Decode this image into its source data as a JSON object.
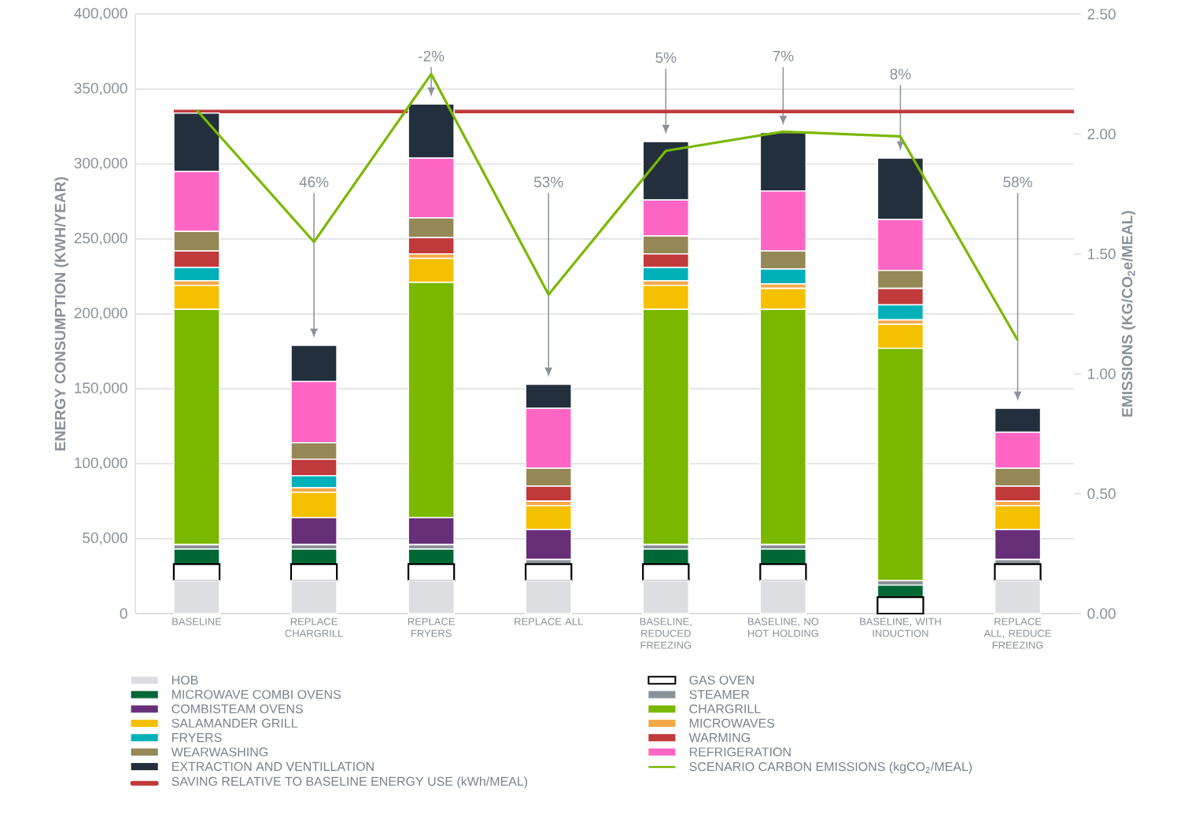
{
  "chart_data": {
    "type": "bar",
    "stacked": true,
    "categories": [
      "BASELINE",
      "REPLACE CHARGRILL",
      "REPLACE FRYERS",
      "REPLACE ALL",
      "BASELINE, REDUCED FREEZING",
      "BASELINE, NO HOT HOLDING",
      "BASELINE, WITH INDUCTION",
      "REPLACE ALL, REDUCE FREEZING"
    ],
    "series": [
      {
        "name": "HOB",
        "color": "#dddee2",
        "values": [
          22000,
          22000,
          22000,
          22000,
          22000,
          22000,
          0,
          22000
        ]
      },
      {
        "name": "GAS OVEN",
        "color": "#ffffff",
        "values": [
          11000,
          11000,
          11000,
          11000,
          11000,
          11000,
          11000,
          11000
        ]
      },
      {
        "name": "MICROWAVE COMBI OVENS",
        "color": "#006837",
        "values": [
          10000,
          10000,
          10000,
          0,
          10000,
          10000,
          8000,
          0
        ]
      },
      {
        "name": "STEAMER",
        "color": "#8a9199",
        "values": [
          3000,
          3000,
          3000,
          3000,
          3000,
          3000,
          3000,
          3000
        ]
      },
      {
        "name": "COMBISTEAM OVENS",
        "color": "#662f78",
        "values": [
          0,
          18000,
          18000,
          20000,
          0,
          0,
          0,
          20000
        ]
      },
      {
        "name": "CHARGRILL",
        "color": "#7ab800",
        "values": [
          157000,
          0,
          157000,
          0,
          157000,
          157000,
          155000,
          0
        ]
      },
      {
        "name": "SALAMANDER GRILL",
        "color": "#f5c000",
        "values": [
          16000,
          17000,
          16000,
          16000,
          16000,
          14000,
          16000,
          16000
        ]
      },
      {
        "name": "MICROWAVES",
        "color": "#f5a84a",
        "values": [
          3000,
          3000,
          3000,
          3000,
          3000,
          3000,
          3000,
          3000
        ]
      },
      {
        "name": "FRYERS",
        "color": "#00b0b9",
        "values": [
          9000,
          8000,
          0,
          0,
          9000,
          10000,
          10000,
          0
        ]
      },
      {
        "name": "WARMING",
        "color": "#c0393b",
        "values": [
          11000,
          11000,
          11000,
          10000,
          9000,
          0,
          11000,
          10000
        ]
      },
      {
        "name": "WEARWASHING",
        "color": "#948856",
        "values": [
          13000,
          11000,
          13000,
          12000,
          12000,
          12000,
          12000,
          12000
        ]
      },
      {
        "name": "REFRIGERATION",
        "color": "#ff66c4",
        "values": [
          40000,
          41000,
          40000,
          40000,
          24000,
          40000,
          34000,
          24000
        ]
      },
      {
        "name": "EXTRACTION AND VENTILLATION",
        "color": "#232f3c",
        "values": [
          39000,
          24000,
          36000,
          16000,
          39000,
          39000,
          41000,
          16000
        ]
      },
      {
        "name": "SCENARIO CARBON EMISSIONS (kgCO$_{2}$/MEAL)",
        "type": "line",
        "axis": "y2",
        "color": "#7ab800",
        "values": [
          2.1,
          1.55,
          2.25,
          1.33,
          1.93,
          2.01,
          1.99,
          1.14
        ]
      }
    ],
    "ylabel": "ENERGY CONSUMPTION (KWH/YEAR)",
    "y2label": "EMISSIONS (KG/CO$_{2}$e/MEAL)",
    "ylim": [
      0,
      400000
    ],
    "yticks": [
      0,
      {
        "value": 50000,
        "label": "50,000"
      },
      {
        "value": 100000,
        "label": "100,000"
      },
      {
        "value": 150000,
        "label": "150,000"
      },
      {
        "value": 200000,
        "label": "200,000"
      },
      {
        "value": 250000,
        "label": "250,000"
      },
      {
        "value": 300000,
        "label": "300,000"
      },
      {
        "value": 350000,
        "label": "350,000"
      },
      {
        "value": 400000,
        "label": "400,000"
      }
    ],
    "y2lim": [
      0,
      2.5
    ],
    "y2ticks": [
      {
        "value": 0,
        "label": "0.00"
      },
      {
        "value": 0.5,
        "label": "0.50"
      },
      {
        "value": 1,
        "label": "1.00"
      },
      {
        "value": 1.5,
        "label": "1.50"
      },
      {
        "value": 2,
        "label": "2.00"
      },
      {
        "value": 2.5,
        "label": "2.50"
      }
    ],
    "ref_lines": [
      {
        "axis": "y",
        "value": 335000,
        "label": "SAVING RELATIVE TO BASELINE ENERGY USE (kWh/MEAL)",
        "color": "#c0393b"
      }
    ],
    "annotations": [
      "46%",
      "-2%",
      "53%",
      "5%",
      "7%",
      "8%",
      "58%"
    ],
    "grid": "y",
    "legend": "bottom"
  }
}
